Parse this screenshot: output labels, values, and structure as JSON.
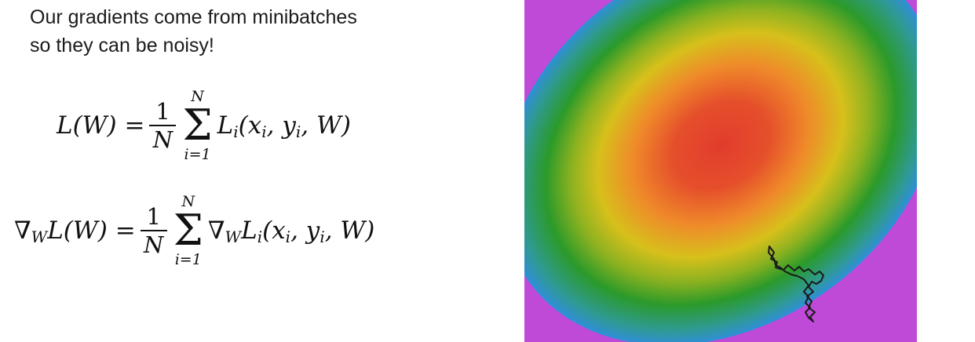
{
  "heading": {
    "line1": "Our gradients come from minibatches",
    "line2": "so they can be noisy!"
  },
  "equation1": {
    "lhs": "L(W) =",
    "num": "1",
    "den": "N",
    "sum_top": "N",
    "sum_bottom": "i=1",
    "sigma": "Σ",
    "term": "L",
    "term_sub": "i",
    "args": "(x",
    "x_sub": "i",
    "comma_y": ", y",
    "y_sub": "i",
    "tail": ", W)"
  },
  "equation2": {
    "nabla": "∇",
    "nabla_sub": "W",
    "lhs": "L(W) =",
    "num": "1",
    "den": "N",
    "sum_top": "N",
    "sum_bottom": "i=1",
    "sigma": "Σ",
    "nabla2": "∇",
    "nabla2_sub": "W",
    "term": "L",
    "term_sub": "i",
    "args": "(x",
    "x_sub": "i",
    "comma_y": ", y",
    "y_sub": "i",
    "tail": ", W)"
  },
  "plot": {
    "colors": {
      "center": "#e24a2e",
      "orange": "#ef8a2a",
      "yellow": "#d6c21a",
      "green": "#2b9a2a",
      "blue": "#2f8fd8",
      "purple": "#b04ad8",
      "path": "#1a1a1a"
    }
  }
}
